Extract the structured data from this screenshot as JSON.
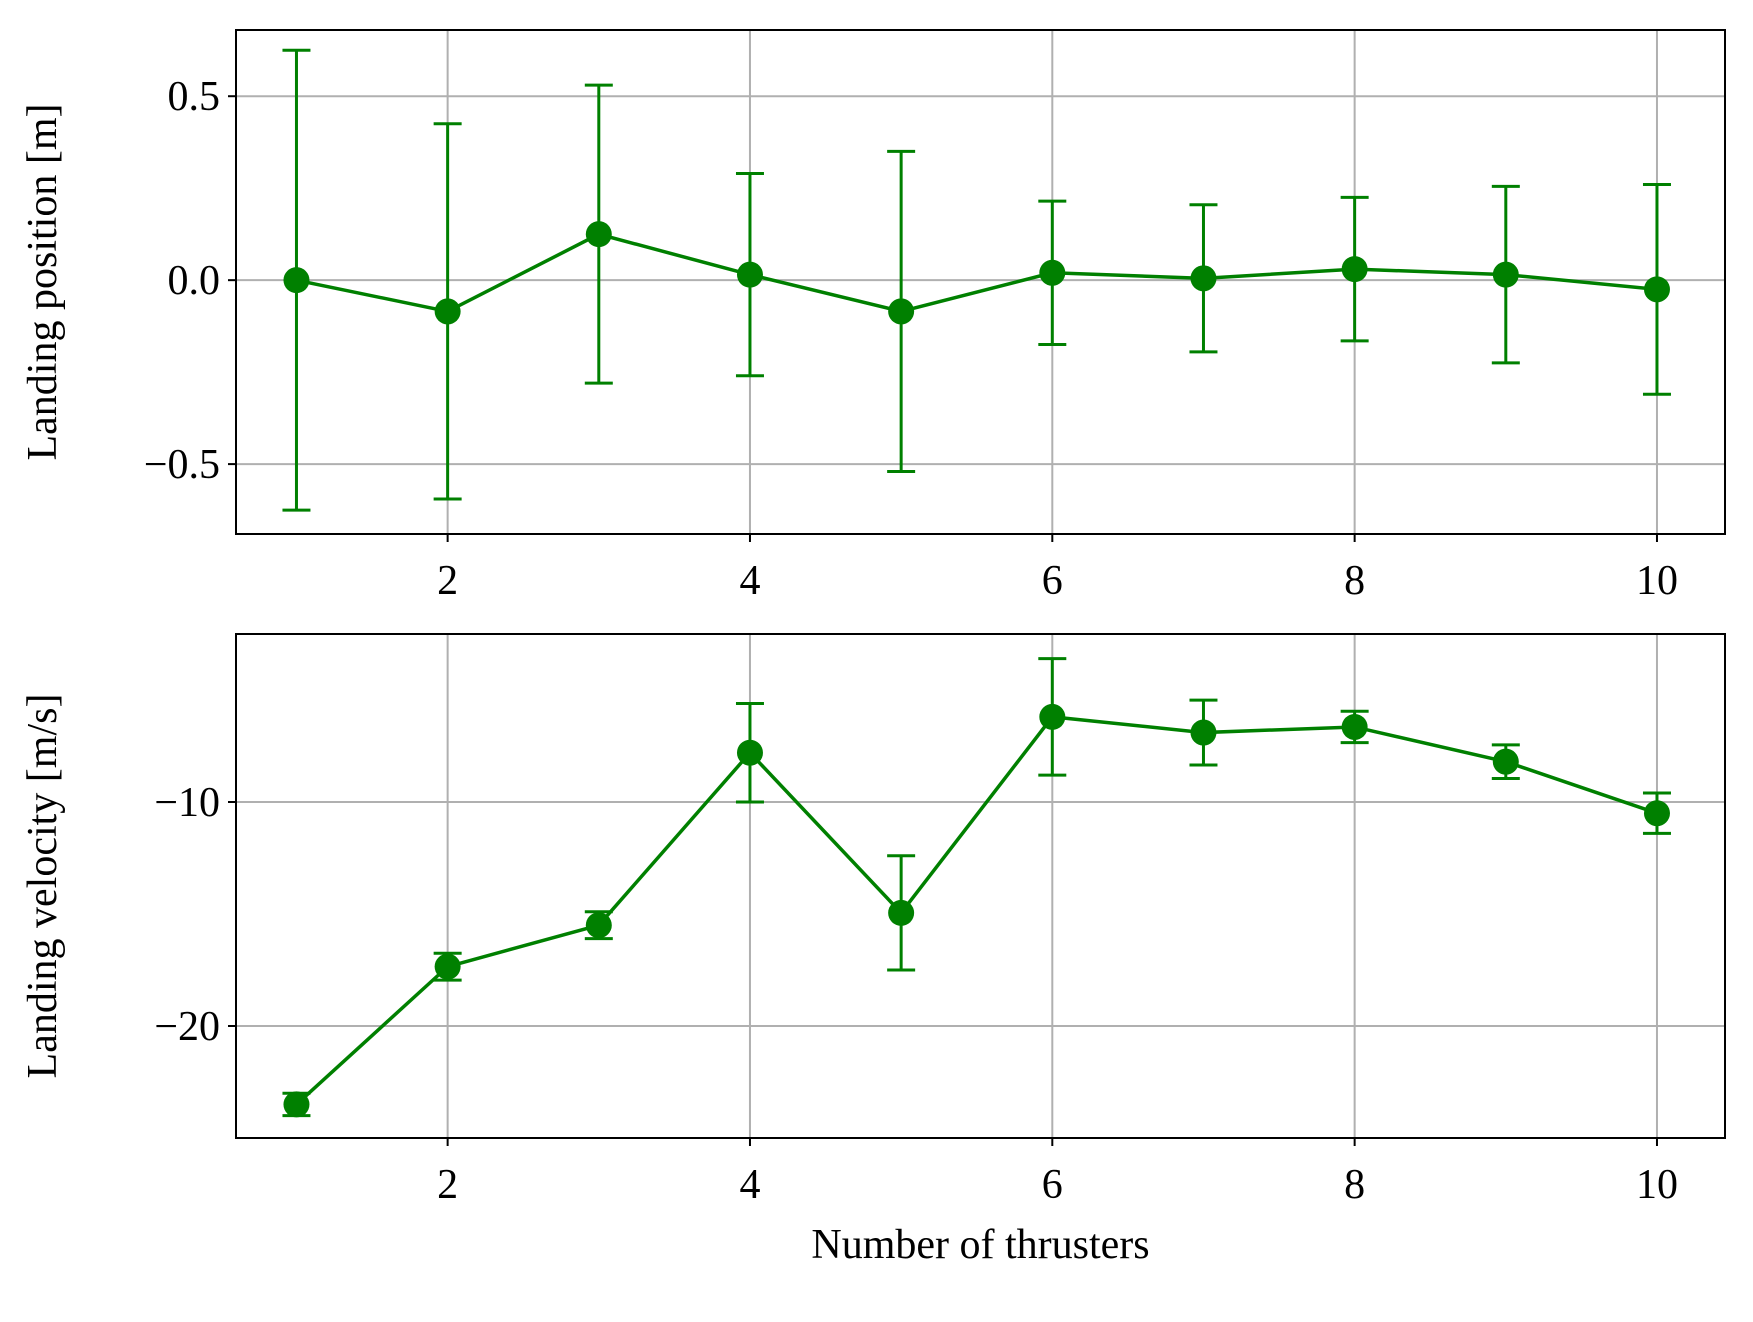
{
  "colors": {
    "series": "#008000",
    "grid": "#b0b0b0",
    "axes": "#000000",
    "background": "#ffffff"
  },
  "chart_data": [
    {
      "type": "line",
      "error_bars": true,
      "marker": "circle",
      "grid": true,
      "xlabel": "",
      "ylabel": "Landing position [m]",
      "xlim": [
        0.6,
        10.45
      ],
      "ylim": [
        -0.69,
        0.68
      ],
      "xticks": [
        2,
        4,
        6,
        8,
        10
      ],
      "xtick_labels": [
        "2",
        "4",
        "6",
        "8",
        "10"
      ],
      "yticks": [
        0.5,
        0.0,
        -0.5
      ],
      "ytick_labels": [
        "0.5",
        "0.0",
        "−0.5"
      ],
      "x": [
        1,
        2,
        3,
        4,
        5,
        6,
        7,
        8,
        9,
        10
      ],
      "series": [
        {
          "values": [
            0.0,
            -0.085,
            0.125,
            0.015,
            -0.085,
            0.02,
            0.005,
            0.03,
            0.015,
            -0.025
          ],
          "errors": [
            0.625,
            0.51,
            0.405,
            0.275,
            0.435,
            0.195,
            0.2,
            0.195,
            0.24,
            0.285
          ]
        }
      ]
    },
    {
      "type": "line",
      "error_bars": true,
      "marker": "circle",
      "grid": true,
      "xlabel": "Number of thrusters",
      "ylabel": "Landing velocity [m/s]",
      "xlim": [
        0.6,
        10.45
      ],
      "ylim": [
        -25,
        -2.5
      ],
      "xticks": [
        2,
        4,
        6,
        8,
        10
      ],
      "xtick_labels": [
        "2",
        "4",
        "6",
        "8",
        "10"
      ],
      "yticks": [
        -10,
        -20
      ],
      "ytick_labels": [
        "−10",
        "−20"
      ],
      "x": [
        1,
        2,
        3,
        4,
        5,
        6,
        7,
        8,
        9,
        10
      ],
      "series": [
        {
          "values": [
            -23.5,
            -17.35,
            -15.5,
            -7.8,
            -14.95,
            -6.2,
            -6.9,
            -6.65,
            -8.2,
            -10.5
          ],
          "errors": [
            0.5,
            0.6,
            0.6,
            2.2,
            2.55,
            2.6,
            1.45,
            0.7,
            0.75,
            0.9
          ]
        }
      ]
    }
  ]
}
